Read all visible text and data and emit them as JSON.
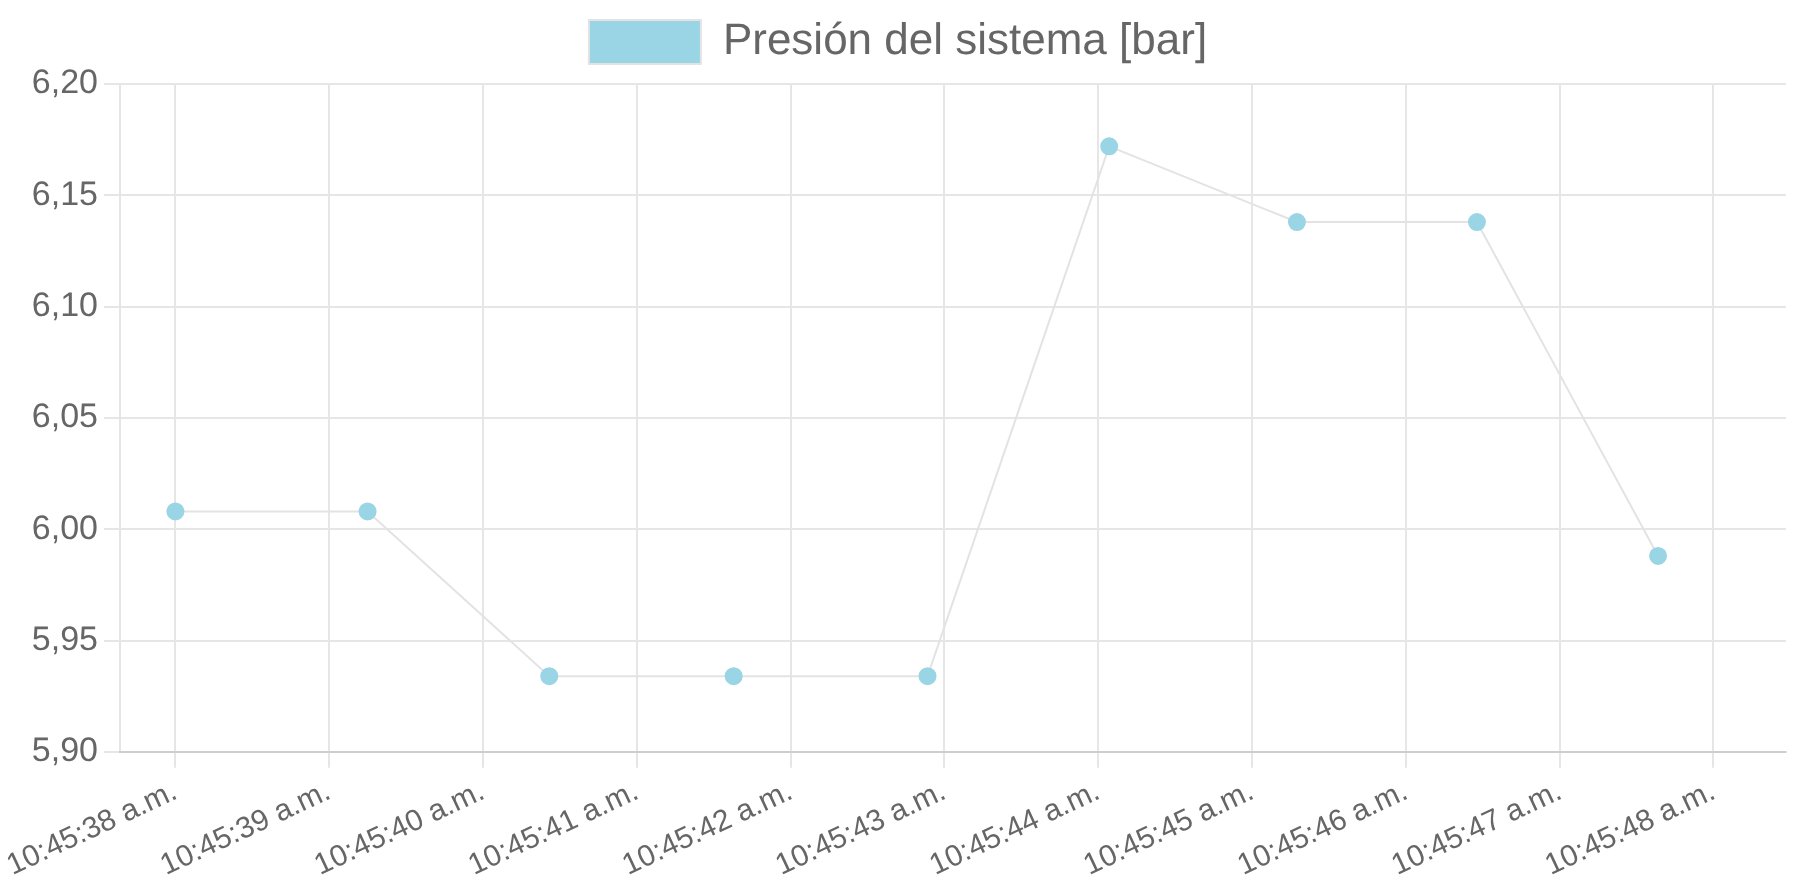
{
  "chart_data": {
    "type": "line",
    "series": [
      {
        "name": "Presión del sistema [bar]",
        "color": "#9ad5e6",
        "x": [
          10.760556,
          10.760903,
          10.761231,
          10.761564,
          10.761914,
          10.762242,
          10.762581,
          10.762906,
          10.763233
        ],
        "values": [
          6.008,
          6.008,
          5.934,
          5.934,
          5.934,
          6.172,
          6.138,
          6.138,
          5.988
        ]
      }
    ],
    "xlim": [
      10.760456,
      10.763464
    ],
    "xticks": [
      {
        "value": 10.760556,
        "label": "10:45:38 a.m."
      },
      {
        "value": 10.760833,
        "label": "10:45:39 a.m."
      },
      {
        "value": 10.761111,
        "label": "10:45:40 a.m."
      },
      {
        "value": 10.761389,
        "label": "10:45:41 a.m."
      },
      {
        "value": 10.761667,
        "label": "10:45:42 a.m."
      },
      {
        "value": 10.761944,
        "label": "10:45:43 a.m."
      },
      {
        "value": 10.762222,
        "label": "10:45:44 a.m."
      },
      {
        "value": 10.7625,
        "label": "10:45:45 a.m."
      },
      {
        "value": 10.762778,
        "label": "10:45:46 a.m."
      },
      {
        "value": 10.763056,
        "label": "10:45:47 a.m."
      },
      {
        "value": 10.763333,
        "label": "10:45:48 a.m."
      }
    ],
    "ylim": [
      5.9,
      6.2
    ],
    "yticks": [
      {
        "value": 5.9,
        "label": "5,90"
      },
      {
        "value": 5.95,
        "label": "5,95"
      },
      {
        "value": 6,
        "label": "6,00"
      },
      {
        "value": 6.05,
        "label": "6,05"
      },
      {
        "value": 6.1,
        "label": "6,10"
      },
      {
        "value": 6.15,
        "label": "6,15"
      },
      {
        "value": 6.2,
        "label": "6,20"
      }
    ],
    "grid": true,
    "legend": "top",
    "marker": "circle",
    "line_style": "solid"
  }
}
